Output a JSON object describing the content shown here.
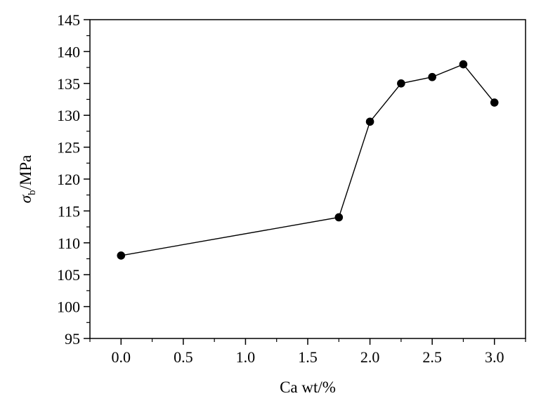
{
  "chart_data": {
    "type": "line",
    "xlabel": "Ca wt/%",
    "ylabel": {
      "symbol": "σ",
      "subscript": "b",
      "rest": "/MPa"
    },
    "xlim": [
      -0.25,
      3.25
    ],
    "ylim": [
      95,
      145
    ],
    "x_ticks": [
      0.0,
      0.5,
      1.0,
      1.5,
      2.0,
      2.5,
      3.0
    ],
    "x_tick_labels": [
      "0.0",
      "0.5",
      "1.0",
      "1.5",
      "2.0",
      "2.5",
      "3.0"
    ],
    "y_ticks": [
      95,
      100,
      105,
      110,
      115,
      120,
      125,
      130,
      135,
      140,
      145
    ],
    "y_tick_labels": [
      "95",
      "100",
      "105",
      "110",
      "115",
      "120",
      "125",
      "130",
      "135",
      "140",
      "145"
    ],
    "grid": false,
    "series": [
      {
        "x": [
          0.0,
          1.75,
          2.0,
          2.25,
          2.5,
          2.75,
          3.0
        ],
        "y": [
          108,
          114,
          129,
          135,
          136,
          138,
          132
        ],
        "color": "#000000",
        "marker": "circle"
      }
    ]
  }
}
